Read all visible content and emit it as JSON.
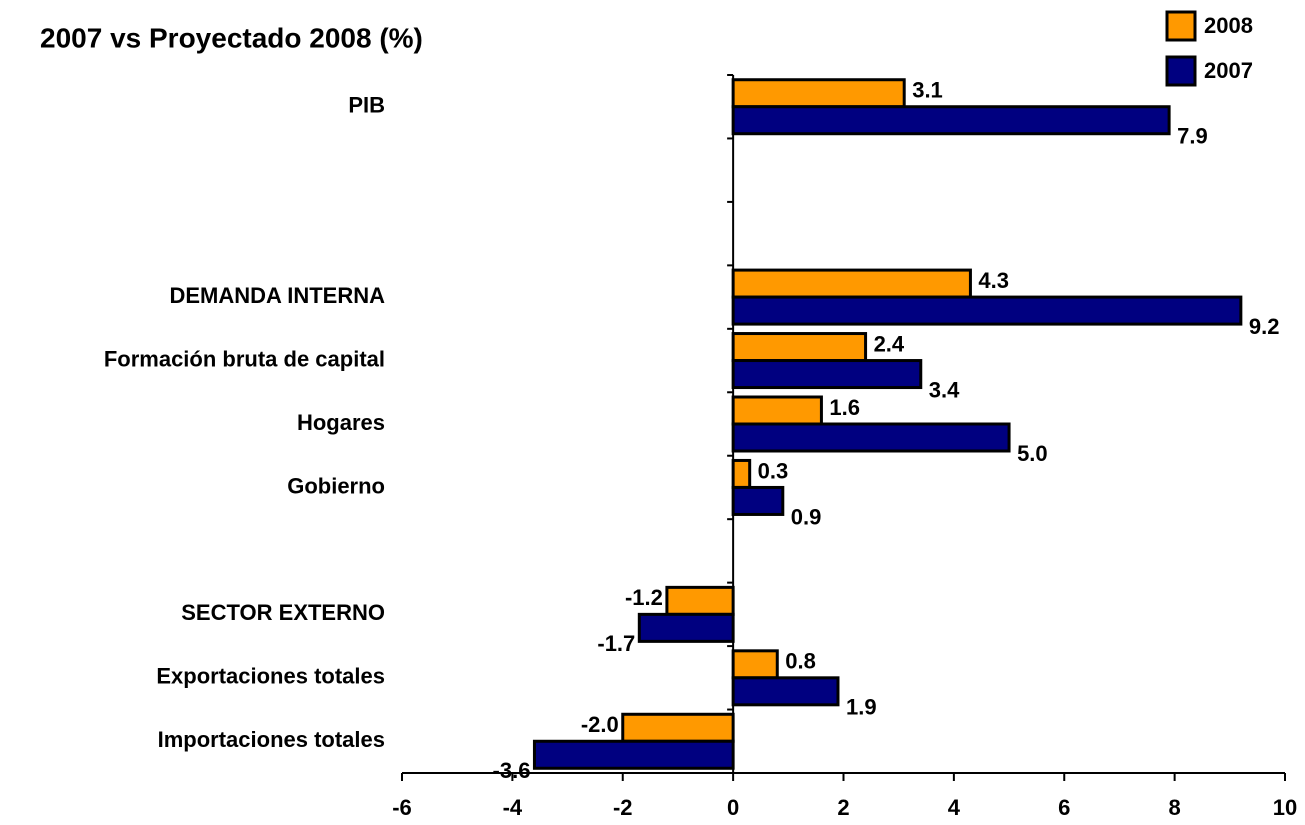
{
  "chart_data": {
    "type": "hbar",
    "title": "2007 vs Proyectado 2008 (%)",
    "categories": [
      "PIB",
      null,
      null,
      "DEMANDA INTERNA",
      "Formación bruta de capital",
      "Hogares",
      "Gobierno",
      null,
      "SECTOR EXTERNO",
      "Exportaciones totales",
      "Importaciones totales"
    ],
    "series": [
      {
        "name": "2008",
        "color": "#ff9900",
        "values": [
          3.1,
          null,
          null,
          4.3,
          2.4,
          1.6,
          0.3,
          null,
          -1.2,
          0.8,
          -2.0
        ],
        "value_labels": [
          "3.1",
          null,
          null,
          "4.3",
          "2.4",
          "1.6",
          "0.3",
          null,
          "-1.2",
          "0.8",
          "-2.0"
        ]
      },
      {
        "name": "2007",
        "color": "#000080",
        "values": [
          7.9,
          null,
          null,
          9.2,
          3.4,
          5.0,
          0.9,
          null,
          -1.7,
          1.9,
          -3.6
        ],
        "value_labels": [
          "7.9",
          null,
          null,
          "9.2",
          "3.4",
          "5.0",
          "0.9",
          null,
          "-1.7",
          "1.9",
          "-3.6"
        ]
      }
    ],
    "xlim": [
      -6,
      10
    ],
    "xticks": [
      -6,
      -4,
      -2,
      0,
      2,
      4,
      6,
      8,
      10
    ],
    "legend": "top-right"
  }
}
